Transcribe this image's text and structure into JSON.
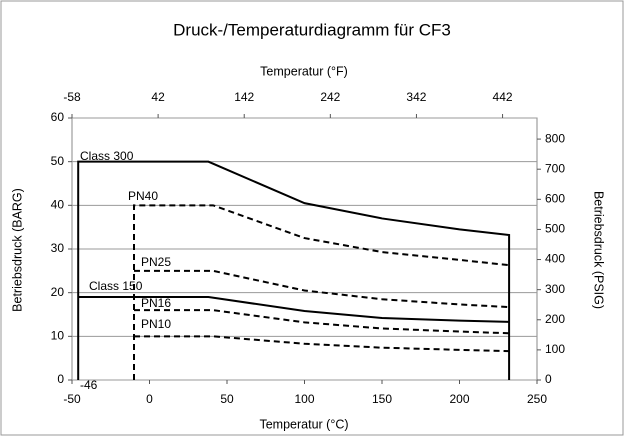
{
  "chart_data": {
    "type": "line",
    "title": "Druck-/Temperaturdiagramm für CF3",
    "x_label": "Temperatur (°C)",
    "x2_label": "Temperatur (°F)",
    "y_label": "Betriebsdruck (BARG)",
    "y2_label": "Betriebsdruck (PSIG)",
    "xlim": [
      -50,
      250
    ],
    "xticks": [
      -50,
      0,
      50,
      100,
      150,
      200,
      250
    ],
    "x2lim": [
      -58,
      482
    ],
    "x2ticks": [
      -58,
      42,
      142,
      242,
      342,
      442
    ],
    "ylim": [
      0,
      60
    ],
    "yticks": [
      0,
      10,
      20,
      30,
      40,
      50,
      60
    ],
    "y2lim": [
      0,
      870
    ],
    "y2ticks": [
      0,
      100,
      200,
      300,
      400,
      500,
      600,
      700,
      800
    ],
    "grid": true,
    "annotations": [
      {
        "text": "-46"
      }
    ],
    "series": [
      {
        "name": "Class 300",
        "color": "#000000",
        "dash": false,
        "x": [
          -46,
          -46,
          38,
          100,
          150,
          200,
          232,
          232
        ],
        "values": [
          0,
          50,
          50,
          40.5,
          37,
          34.5,
          33.2,
          0
        ]
      },
      {
        "name": "PN40",
        "color": "#000000",
        "dash": true,
        "x": [
          -10,
          -10,
          41,
          100,
          150,
          200,
          232
        ],
        "values": [
          0,
          40,
          40,
          32.5,
          29.3,
          27.5,
          26.3
        ]
      },
      {
        "name": "PN25",
        "color": "#000000",
        "dash": true,
        "x": [
          -10,
          41,
          100,
          150,
          200,
          232
        ],
        "values": [
          25,
          25,
          20.5,
          18.5,
          17.3,
          16.7
        ]
      },
      {
        "name": "Class 150",
        "color": "#000000",
        "dash": false,
        "x": [
          -46,
          38,
          100,
          150,
          200,
          232
        ],
        "values": [
          19,
          19,
          15.8,
          14.2,
          13.6,
          13.3
        ]
      },
      {
        "name": "PN16",
        "color": "#000000",
        "dash": true,
        "x": [
          -10,
          41,
          100,
          150,
          200,
          232
        ],
        "values": [
          16,
          16,
          13.2,
          11.8,
          11.1,
          10.7
        ]
      },
      {
        "name": "PN10",
        "color": "#000000",
        "dash": true,
        "x": [
          -10,
          41,
          100,
          150,
          200,
          232
        ],
        "values": [
          10,
          10,
          8.3,
          7.4,
          6.9,
          6.6
        ]
      }
    ]
  }
}
